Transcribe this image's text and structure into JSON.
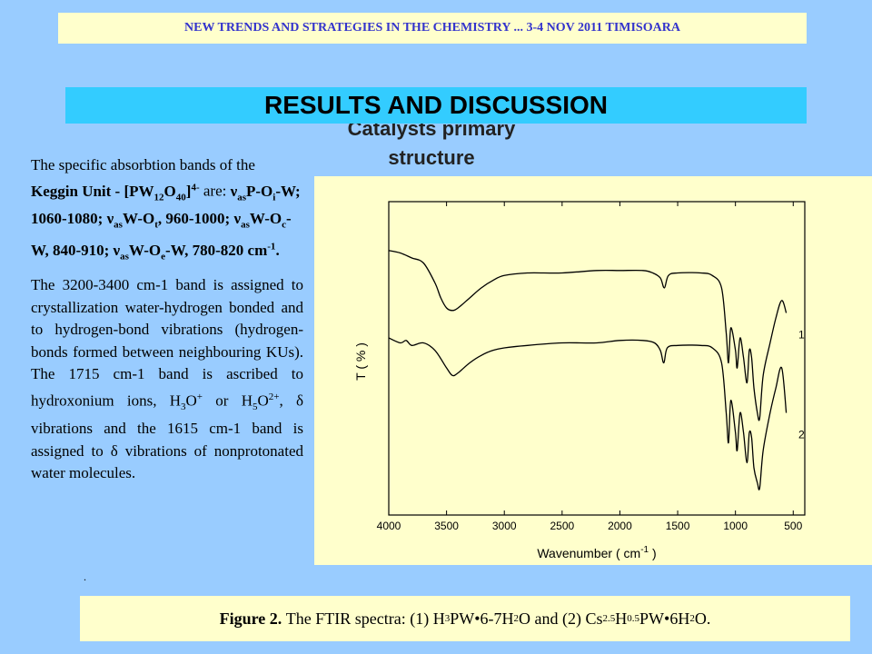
{
  "header": {
    "banner": "NEW TRENDS AND STRATEGIES IN THE CHEMISTRY ... 3-4 NOV 2011 TIMISOARA"
  },
  "section": {
    "title": "RESULTS AND DISCUSSION",
    "subtitle_line1": "Catalysts primary",
    "subtitle_line2": "structure"
  },
  "text": {
    "keggin_intro": "The specific absorbtion bands of the",
    "keggin_unit_label": "Keggin Unit - [PW",
    "keggin_are": "are:",
    "bands_paragraph": "The 3200-3400 cm-1 band is assigned to crystallization water-hydrogen bonded and to hydrogen-bond vibrations (hydrogen-bonds formed between neighbouring KUs). The 1715 cm-1 band is ascribed to hydroxonium ions,",
    "bands_or": "or",
    "bands_delta": ", δ vibrations and the 1615 cm-1 band is assigned to δ vibrations of nonprotonated water molecules.",
    "dot": "."
  },
  "caption": {
    "label": "Figure 2.",
    "text": "The FTIR spectra: (1) H3PW•6-7H2O and (2) Cs2.5H0.5PW•6H2O."
  },
  "chart_data": {
    "type": "line",
    "xlabel": "Wavenumber ( cm-1 )",
    "ylabel": "T ( % )",
    "xlim": [
      4000,
      400
    ],
    "xticks": [
      4000,
      3500,
      3000,
      2500,
      2000,
      1500,
      1000,
      500
    ],
    "x_reversed": true,
    "y_ticks_shown": false,
    "series": [
      {
        "name": "1",
        "x": [
          4000,
          3900,
          3800,
          3700,
          3600,
          3550,
          3500,
          3450,
          3400,
          3300,
          3200,
          3100,
          3000,
          2800,
          2500,
          2200,
          2000,
          1800,
          1715,
          1650,
          1615,
          1580,
          1500,
          1300,
          1200,
          1120,
          1080,
          1060,
          1040,
          1000,
          985,
          960,
          930,
          900,
          880,
          860,
          840,
          810,
          790,
          760,
          700,
          650,
          600,
          560
        ],
        "y": [
          95,
          94,
          92,
          90,
          82,
          76,
          72,
          71,
          72,
          76,
          80,
          83,
          85,
          86,
          86,
          87,
          87,
          87,
          86,
          84,
          80,
          85,
          86,
          86,
          85,
          80,
          62,
          50,
          64,
          55,
          48,
          60,
          52,
          42,
          55,
          52,
          40,
          30,
          28,
          45,
          58,
          68,
          75,
          70
        ]
      },
      {
        "name": "2",
        "x": [
          4000,
          3900,
          3850,
          3800,
          3700,
          3600,
          3500,
          3450,
          3400,
          3300,
          3200,
          3100,
          3000,
          2800,
          2500,
          2200,
          2000,
          1800,
          1700,
          1650,
          1620,
          1590,
          1500,
          1300,
          1200,
          1120,
          1080,
          1060,
          1040,
          1000,
          985,
          960,
          930,
          900,
          880,
          860,
          840,
          810,
          790,
          760,
          700,
          650,
          600,
          560
        ],
        "y": [
          60,
          58,
          59,
          57,
          58,
          55,
          48,
          45,
          46,
          50,
          53,
          55,
          56,
          57,
          58,
          58,
          59,
          59,
          58,
          55,
          50,
          56,
          57,
          57,
          56,
          50,
          30,
          18,
          35,
          22,
          15,
          30,
          22,
          10,
          22,
          20,
          8,
          2,
          0,
          15,
          30,
          40,
          48,
          30
        ]
      }
    ]
  },
  "colors": {
    "background": "#99ccff",
    "panel": "#ffffcc",
    "accent": "#33ccff",
    "banner_text": "#3333cc"
  }
}
